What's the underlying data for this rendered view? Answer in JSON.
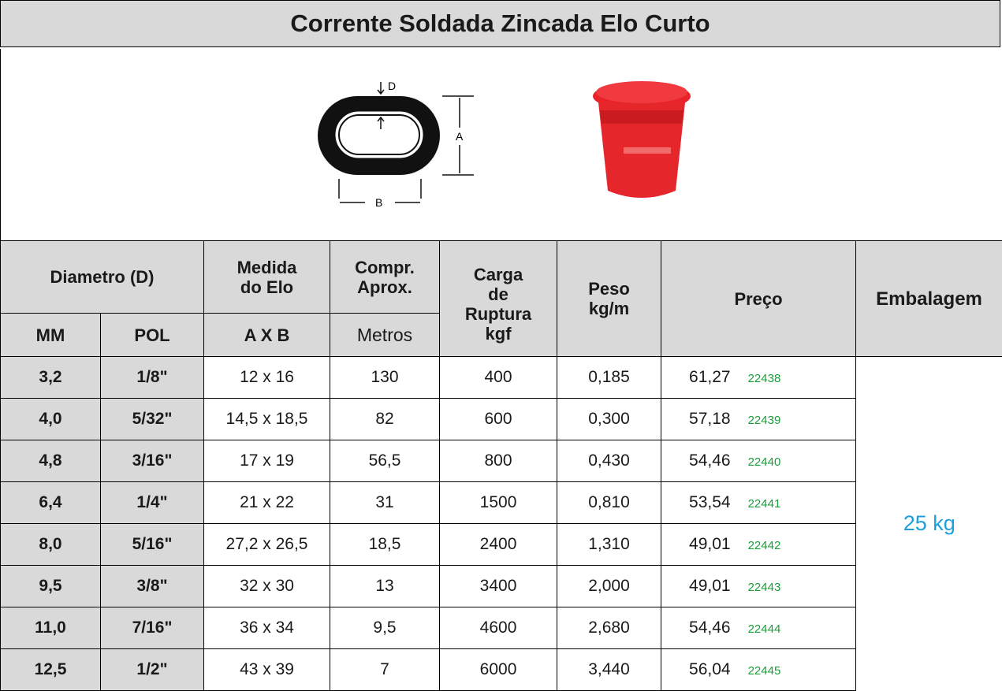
{
  "header": {
    "title": "Corrente Soldada Zincada Elo Curto"
  },
  "diagram": {
    "labels": [
      "D",
      "A",
      "B"
    ]
  },
  "table": {
    "columns": {
      "diametro": "Diametro (D)",
      "mm": "MM",
      "pol": "POL",
      "medida": "Medida\ndo Elo",
      "medida_unit": "A X B",
      "compr": "Compr.\nAprox.",
      "compr_unit": "Metros",
      "carga": "Carga\nde\nRuptura\nkgf",
      "peso": "Peso\nkg/m",
      "preco": "Preço",
      "embalagem": "Embalagem"
    },
    "rows": [
      [
        "3,2",
        "1/8\"",
        "12 x 16",
        "130",
        "400",
        "0,185",
        "61,27",
        "22438"
      ],
      [
        "4,0",
        "5/32\"",
        "14,5 x 18,5",
        "82",
        "600",
        "0,300",
        "57,18",
        "22439"
      ],
      [
        "4,8",
        "3/16\"",
        "17 x 19",
        "56,5",
        "800",
        "0,430",
        "54,46",
        "22440"
      ],
      [
        "6,4",
        "1/4\"",
        "21 x 22",
        "31",
        "1500",
        "0,810",
        "53,54",
        "22441"
      ],
      [
        "8,0",
        "5/16\"",
        "27,2 x 26,5",
        "18,5",
        "2400",
        "1,310",
        "49,01",
        "22442"
      ],
      [
        "9,5",
        "3/8\"",
        "32 x 30",
        "13",
        "3400",
        "2,000",
        "49,01",
        "22443"
      ],
      [
        "11,0",
        "7/16\"",
        "36 x 34",
        "9,5",
        "4600",
        "2,680",
        "54,46",
        "22444"
      ],
      [
        "12,5",
        "1/2\"",
        "43 x 39",
        "7",
        "6000",
        "3,440",
        "56,04",
        "22445"
      ]
    ],
    "packaging": "25 kg"
  }
}
